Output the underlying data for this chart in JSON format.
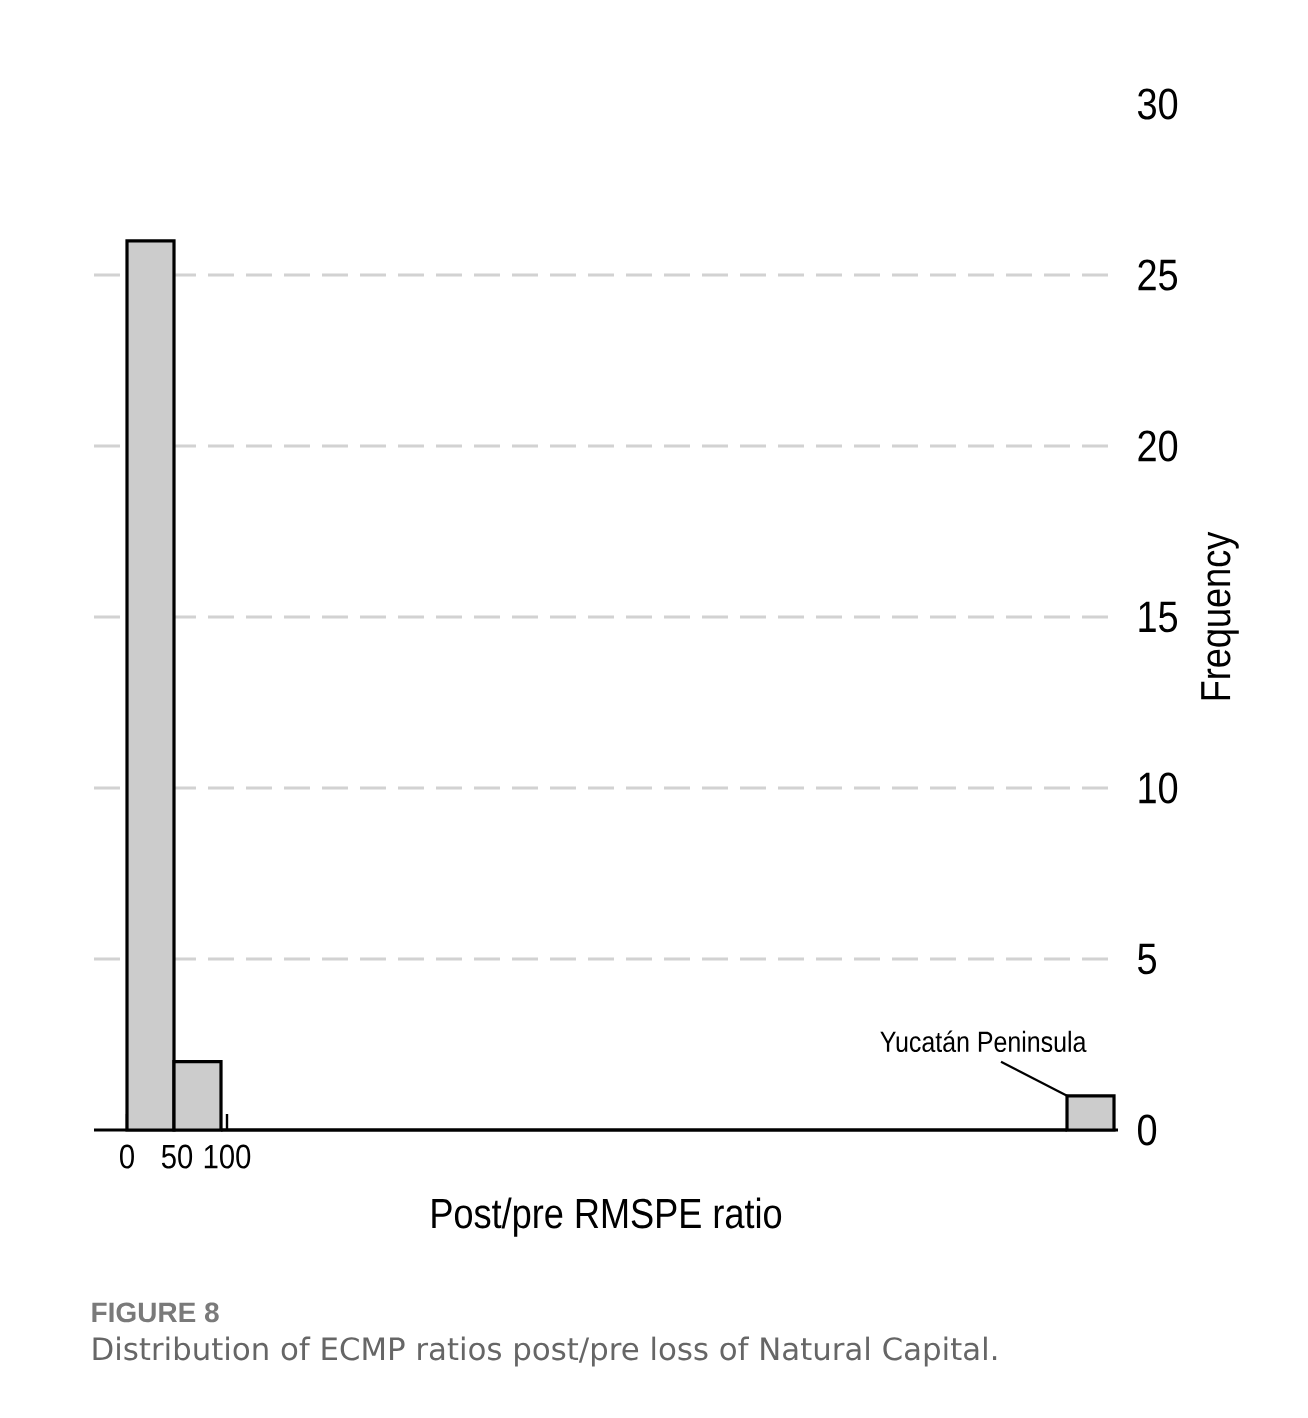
{
  "chart_data": {
    "type": "histogram",
    "xlabel": "Post/pre RMSPE ratio",
    "ylabel": "Frequency",
    "bins": [
      0,
      47,
      94,
      141,
      188,
      235,
      282,
      329,
      376,
      423,
      470,
      517,
      564,
      611,
      658,
      705,
      752,
      799,
      846,
      893,
      940,
      987
    ],
    "values": [
      26,
      2,
      0,
      0,
      0,
      0,
      0,
      0,
      0,
      0,
      0,
      0,
      0,
      0,
      0,
      0,
      0,
      0,
      0,
      0,
      1
    ],
    "color": "#cccccc",
    "xlim": [
      -33,
      991
    ],
    "ylim": [
      0,
      30
    ],
    "xticks": [
      0,
      50,
      100
    ],
    "yticks": [
      0,
      5,
      10,
      15,
      20,
      25,
      30
    ],
    "grid": "y",
    "annotations": [
      {
        "text": "Yucatán Peninsula",
        "x": 940,
        "y": 1
      },
      "FIGURE 8",
      "Distribution of ECMP ratios post/pre loss of Natural Capital."
    ]
  }
}
